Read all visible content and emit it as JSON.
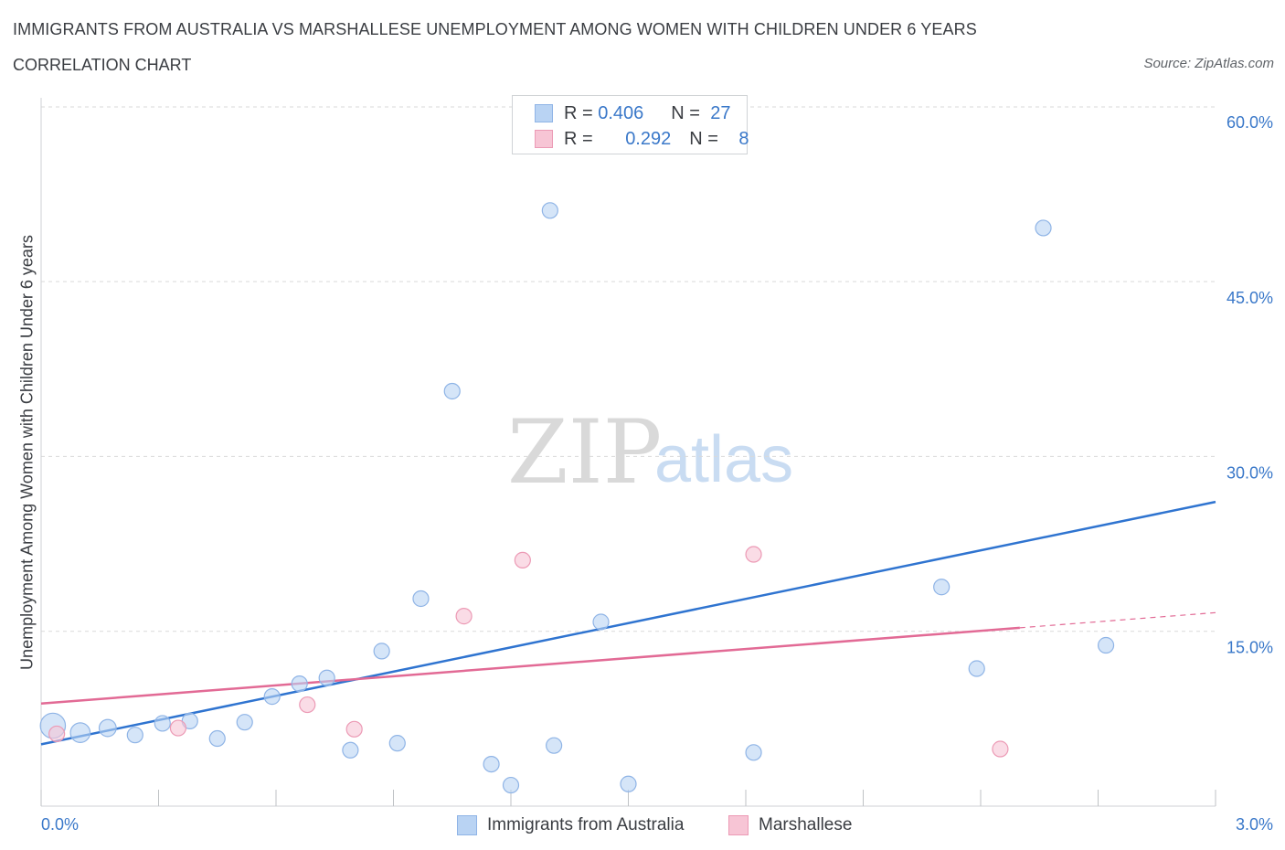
{
  "header": {
    "title": "IMMIGRANTS FROM AUSTRALIA VS MARSHALLESE UNEMPLOYMENT AMONG WOMEN WITH CHILDREN UNDER 6 YEARS",
    "subtitle": "CORRELATION CHART",
    "source": "Source: ZipAtlas.com"
  },
  "watermark": {
    "zip": "ZIP",
    "atlas": "atlas"
  },
  "legend": {
    "rows": [
      {
        "r_label": "R = ",
        "r_value": "0.406",
        "n_label": "N = ",
        "n_value": "27"
      },
      {
        "r_label": "R = ",
        "r_value": "0.292",
        "n_label": "N = ",
        "n_value": "8"
      }
    ]
  },
  "bottom_legend": {
    "australia": "Immigrants from Australia",
    "marshallese": "Marshallese"
  },
  "colors": {
    "australia_fill": "#b9d3f3",
    "australia_stroke": "#8fb4e6",
    "australia_line": "#2f74d0",
    "marshallese_fill": "#f7c5d5",
    "marshallese_stroke": "#ec9ab5",
    "marshallese_line": "#e26a95",
    "grid": "#d9d9d9",
    "tick_text": "#3a78c9"
  },
  "chart_data": {
    "type": "scatter",
    "title": "IMMIGRANTS FROM AUSTRALIA VS MARSHALLESE UNEMPLOYMENT AMONG WOMEN WITH CHILDREN UNDER 6 YEARS",
    "xlabel": "",
    "ylabel": "Unemployment Among Women with Children Under 6 years",
    "xlim": [
      0,
      3.0
    ],
    "ylim": [
      0,
      60
    ],
    "x_tick_labels": [
      "0.0%",
      "3.0%"
    ],
    "y_ticks": [
      15,
      30,
      45,
      60
    ],
    "y_tick_labels": [
      "15.0%",
      "30.0%",
      "45.0%",
      "60.0%"
    ],
    "grid": true,
    "legend_position": "top-center",
    "series": [
      {
        "name": "Immigrants from Australia",
        "points": [
          {
            "x": 0.03,
            "y": 6.9,
            "size": 2.6
          },
          {
            "x": 0.1,
            "y": 6.3,
            "size": 1.6
          },
          {
            "x": 0.17,
            "y": 6.7,
            "size": 1.2
          },
          {
            "x": 0.24,
            "y": 6.1,
            "size": 1
          },
          {
            "x": 0.31,
            "y": 7.1,
            "size": 1
          },
          {
            "x": 0.38,
            "y": 7.3,
            "size": 1
          },
          {
            "x": 0.45,
            "y": 5.8,
            "size": 1
          },
          {
            "x": 0.52,
            "y": 7.2,
            "size": 1
          },
          {
            "x": 0.59,
            "y": 9.4,
            "size": 1
          },
          {
            "x": 0.66,
            "y": 10.5,
            "size": 1
          },
          {
            "x": 0.73,
            "y": 11.0,
            "size": 1
          },
          {
            "x": 0.79,
            "y": 4.8,
            "size": 1
          },
          {
            "x": 0.87,
            "y": 13.3,
            "size": 1
          },
          {
            "x": 0.91,
            "y": 5.4,
            "size": 1
          },
          {
            "x": 0.97,
            "y": 17.8,
            "size": 1
          },
          {
            "x": 1.05,
            "y": 35.6,
            "size": 1
          },
          {
            "x": 1.15,
            "y": 3.6,
            "size": 1
          },
          {
            "x": 1.2,
            "y": 1.8,
            "size": 1
          },
          {
            "x": 1.3,
            "y": 51.1,
            "size": 1
          },
          {
            "x": 1.31,
            "y": 5.2,
            "size": 1
          },
          {
            "x": 1.43,
            "y": 15.8,
            "size": 1
          },
          {
            "x": 1.5,
            "y": 1.9,
            "size": 1
          },
          {
            "x": 1.82,
            "y": 4.6,
            "size": 1
          },
          {
            "x": 2.3,
            "y": 18.8,
            "size": 1
          },
          {
            "x": 2.39,
            "y": 11.8,
            "size": 1
          },
          {
            "x": 2.56,
            "y": 49.6,
            "size": 1
          },
          {
            "x": 2.72,
            "y": 13.8,
            "size": 1
          }
        ],
        "trend": {
          "x0": 0,
          "y0": 5.3,
          "x1": 3.0,
          "y1": 26.1
        }
      },
      {
        "name": "Marshallese",
        "points": [
          {
            "x": 0.04,
            "y": 6.2,
            "size": 1
          },
          {
            "x": 0.35,
            "y": 6.7,
            "size": 1
          },
          {
            "x": 0.68,
            "y": 8.7,
            "size": 1
          },
          {
            "x": 0.8,
            "y": 6.6,
            "size": 1
          },
          {
            "x": 1.08,
            "y": 16.3,
            "size": 1
          },
          {
            "x": 1.23,
            "y": 21.1,
            "size": 1
          },
          {
            "x": 1.82,
            "y": 21.6,
            "size": 1
          },
          {
            "x": 2.45,
            "y": 4.9,
            "size": 1
          }
        ],
        "trend": {
          "x0": 0,
          "y0": 8.8,
          "x1": 2.5,
          "y1": 15.3,
          "x_dash_end": 3.0,
          "y_dash_end": 16.6
        }
      }
    ]
  }
}
